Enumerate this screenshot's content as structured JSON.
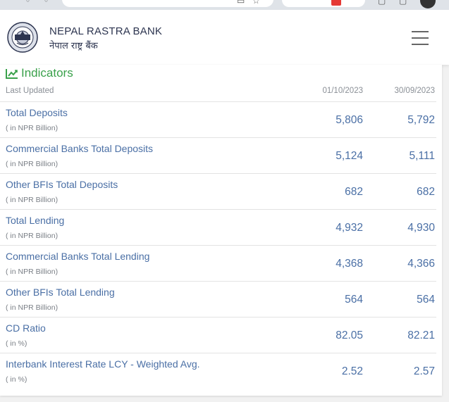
{
  "header": {
    "brand_en": "NEPAL RASTRA BANK",
    "brand_ne": "नेपाल राष्ट्र बैंक"
  },
  "indicators": {
    "title": "Indicators",
    "last_updated_label": "Last Updated",
    "date1": "01/10/2023",
    "date2": "30/09/2023",
    "rows": [
      {
        "label": "Total Deposits",
        "unit": "( in NPR Billion)",
        "v1": "5,806",
        "v2": "5,792"
      },
      {
        "label": "Commercial Banks Total Deposits",
        "unit": "( in NPR Billion)",
        "v1": "5,124",
        "v2": "5,111"
      },
      {
        "label": "Other BFIs Total Deposits",
        "unit": "( in NPR Billion)",
        "v1": "682",
        "v2": "682"
      },
      {
        "label": "Total Lending",
        "unit": "( in NPR Billion)",
        "v1": "4,932",
        "v2": "4,930"
      },
      {
        "label": "Commercial Banks Total Lending",
        "unit": "( in NPR Billion)",
        "v1": "4,368",
        "v2": "4,366"
      },
      {
        "label": "Other BFIs Total Lending",
        "unit": "( in NPR Billion)",
        "v1": "564",
        "v2": "564"
      },
      {
        "label": "CD Ratio",
        "unit": "( in %)",
        "v1": "82.05",
        "v2": "82.21"
      },
      {
        "label": "Interbank Interest Rate LCY - Weighted Avg.",
        "unit": "( in %)",
        "v1": "2.52",
        "v2": "2.57"
      }
    ]
  },
  "colors": {
    "accent_green": "#3aa14b",
    "link_blue": "#4a6fa5",
    "brand_navy": "#2d3550"
  },
  "icons": {
    "logo": "nrb-emblem-icon",
    "menu": "hamburger-menu-icon",
    "indicators": "line-chart-icon"
  }
}
